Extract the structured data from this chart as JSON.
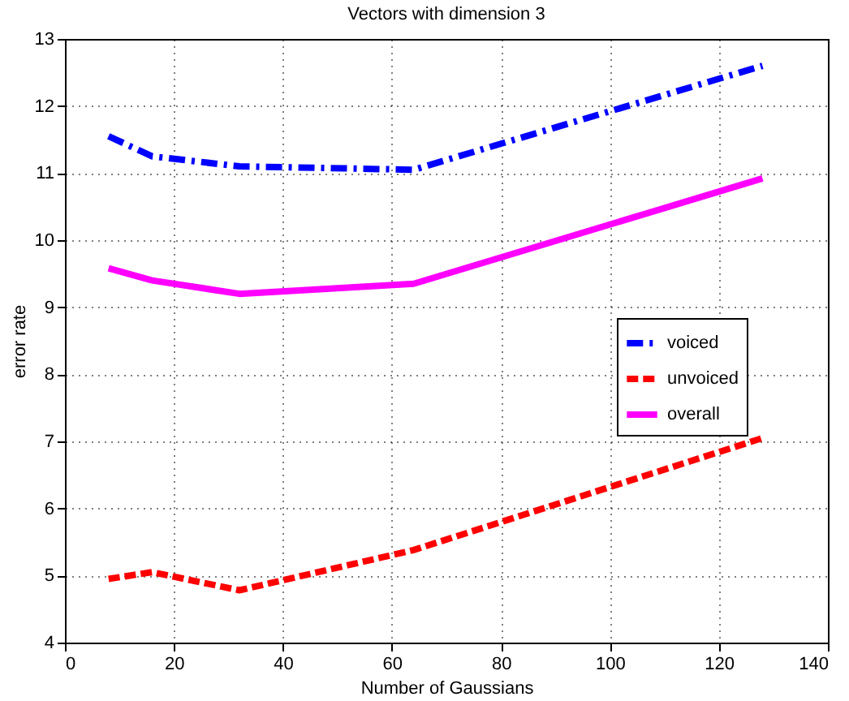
{
  "chart_data": {
    "type": "line",
    "title": "Vectors with dimension 3",
    "xlabel": "Number of Gaussians",
    "ylabel": "error rate",
    "x": [
      8,
      16,
      32,
      64,
      128
    ],
    "series": [
      {
        "name": "voiced",
        "color": "#0000ff",
        "line_style": "dashdot",
        "values": [
          11.55,
          11.25,
          11.1,
          11.05,
          12.6
        ]
      },
      {
        "name": "unvoiced",
        "color": "#ff0000",
        "line_style": "dashed",
        "values": [
          4.95,
          5.05,
          4.78,
          5.38,
          7.05
        ]
      },
      {
        "name": "overall",
        "color": "#ff00ff",
        "line_style": "solid",
        "values": [
          9.58,
          9.4,
          9.2,
          9.35,
          10.92
        ]
      }
    ],
    "xlim": [
      0,
      140
    ],
    "xticks": [
      0,
      20,
      40,
      60,
      80,
      100,
      120,
      140
    ],
    "ylim": [
      4,
      13
    ],
    "yticks": [
      4,
      5,
      6,
      7,
      8,
      9,
      10,
      11,
      12,
      13
    ],
    "grid": true,
    "legend": "right",
    "marker": "none"
  }
}
